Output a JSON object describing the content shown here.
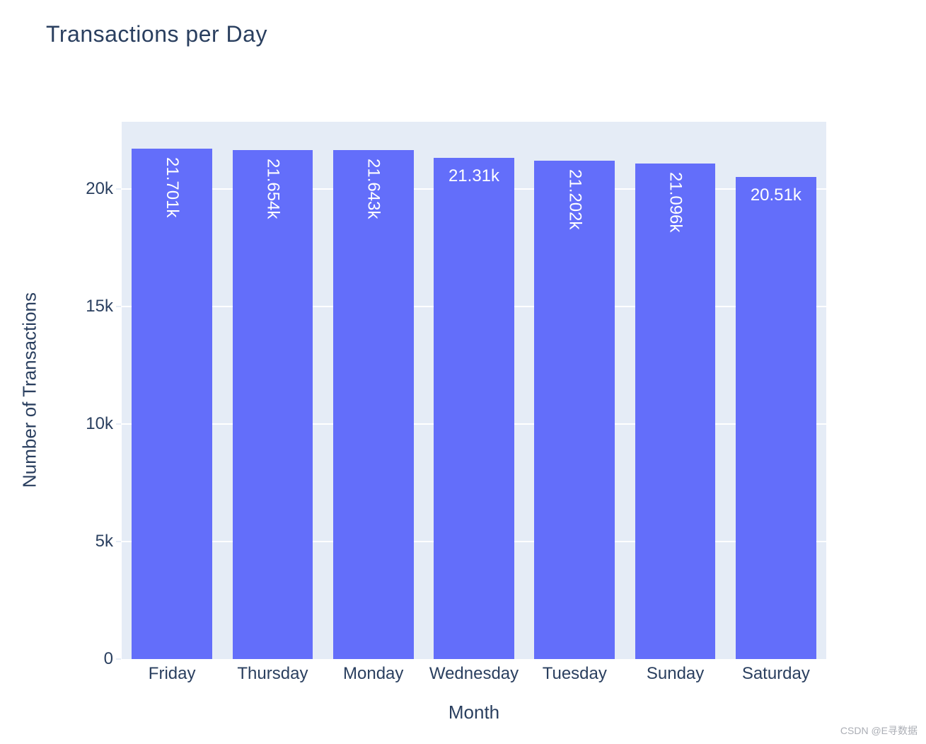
{
  "title": {
    "text": "Transactions per Day"
  },
  "watermark": {
    "text": "CSDN @E寻数据"
  },
  "chart_data": {
    "type": "bar",
    "title": "Transactions per Day",
    "xlabel": "Month",
    "ylabel": "Number of Transactions",
    "categories": [
      "Friday",
      "Thursday",
      "Monday",
      "Wednesday",
      "Tuesday",
      "Sunday",
      "Saturday"
    ],
    "values": [
      21701,
      21654,
      21643,
      21310,
      21202,
      21096,
      20510
    ],
    "bar_labels": [
      "21.701k",
      "21.654k",
      "21.643k",
      "21.31k",
      "21.202k",
      "21.096k",
      "20.51k"
    ],
    "ylim": [
      0,
      22860
    ],
    "yticks": [
      {
        "value": 0,
        "label": "0"
      },
      {
        "value": 5000,
        "label": "5k"
      },
      {
        "value": 10000,
        "label": "10k"
      },
      {
        "value": 15000,
        "label": "15k"
      },
      {
        "value": 20000,
        "label": "20k"
      }
    ],
    "grid": true,
    "legend": "none",
    "colors": {
      "bar": "#636efa",
      "plot_bg": "#e5ecf6",
      "grid": "#ffffff",
      "text": "#2a3f5f",
      "bar_label_text": "#ffffff",
      "watermark": "#abaeb5"
    }
  }
}
